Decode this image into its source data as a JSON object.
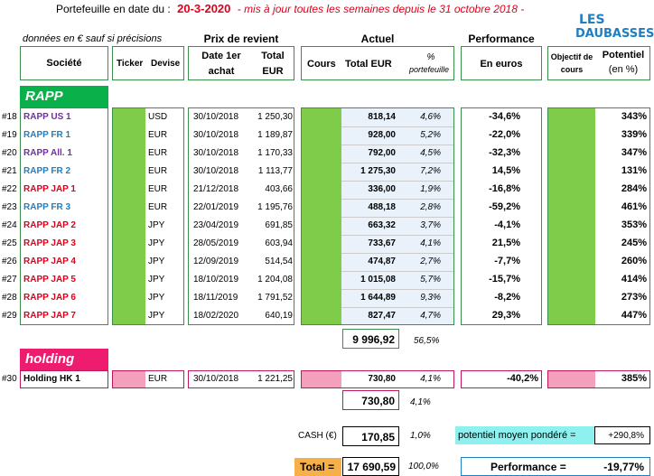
{
  "header": {
    "prefix": "Portefeuille en date du :",
    "date": "20-3-2020",
    "note": "- mis à jour toutes les semaines depuis le 31 octobre 2018 -"
  },
  "logo": {
    "line1": "LES",
    "line2": "DAUBASSES"
  },
  "subtitle": "données en € sauf si précisions",
  "columns": {
    "prix_de_revient": "Prix de revient",
    "actuel": "Actuel",
    "performance": "Performance",
    "societe": "Société",
    "ticker": "Ticker",
    "devise": "Devise",
    "date_achat": "Date 1er achat",
    "total_eur": "Total EUR",
    "cours": "Cours",
    "total_eur2": "Total EUR",
    "pct": "%",
    "pct_sub": "portefeuille",
    "en_euros": "En euros",
    "objectif": "Objectif de cours",
    "potentiel": "Potentiel",
    "potentiel_sub": "(en %)"
  },
  "sections": {
    "rapp": "RAPP",
    "holding": "holding"
  },
  "colors": {
    "rapp_section": "#0ab04a",
    "holding_section": "#ee1c6e",
    "green_fill": "#7fcc4b",
    "pink_fill": "#f4a0bd",
    "fr_blue": "#1f7fc1",
    "jap_red": "#e0001b",
    "us_purple": "#7030a0"
  },
  "rows": [
    {
      "id": "#18",
      "name": "RAPP US 1",
      "color": "#7030a0",
      "devise": "USD",
      "date": "30/10/2018",
      "total": "1 250,30",
      "actuel": "818,14",
      "pct": "4,6%",
      "perf": "-34,6%",
      "potentiel": "343%"
    },
    {
      "id": "#19",
      "name": "RAPP FR 1",
      "color": "#1f7fc1",
      "devise": "EUR",
      "date": "30/10/2018",
      "total": "1 189,87",
      "actuel": "928,00",
      "pct": "5,2%",
      "perf": "-22,0%",
      "potentiel": "339%"
    },
    {
      "id": "#20",
      "name": "RAPP All. 1",
      "color": "#7030a0",
      "devise": "EUR",
      "date": "30/10/2018",
      "total": "1 170,33",
      "actuel": "792,00",
      "pct": "4,5%",
      "perf": "-32,3%",
      "potentiel": "347%"
    },
    {
      "id": "#21",
      "name": "RAPP FR 2",
      "color": "#1f7fc1",
      "devise": "EUR",
      "date": "30/10/2018",
      "total": "1 113,77",
      "actuel": "1 275,30",
      "pct": "7,2%",
      "perf": "14,5%",
      "potentiel": "131%"
    },
    {
      "id": "#22",
      "name": "RAPP JAP 1",
      "color": "#e0001b",
      "devise": "EUR",
      "date": "21/12/2018",
      "total": "403,66",
      "actuel": "336,00",
      "pct": "1,9%",
      "perf": "-16,8%",
      "potentiel": "284%"
    },
    {
      "id": "#23",
      "name": "RAPP FR 3",
      "color": "#1f7fc1",
      "devise": "EUR",
      "date": "22/01/2019",
      "total": "1 195,76",
      "actuel": "488,18",
      "pct": "2,8%",
      "perf": "-59,2%",
      "potentiel": "461%"
    },
    {
      "id": "#24",
      "name": "RAPP JAP 2",
      "color": "#e0001b",
      "devise": "JPY",
      "date": "23/04/2019",
      "total": "691,85",
      "actuel": "663,32",
      "pct": "3,7%",
      "perf": "-4,1%",
      "potentiel": "353%"
    },
    {
      "id": "#25",
      "name": "RAPP JAP 3",
      "color": "#e0001b",
      "devise": "JPY",
      "date": "28/05/2019",
      "total": "603,94",
      "actuel": "733,67",
      "pct": "4,1%",
      "perf": "21,5%",
      "potentiel": "245%"
    },
    {
      "id": "#26",
      "name": "RAPP JAP 4",
      "color": "#e0001b",
      "devise": "JPY",
      "date": "12/09/2019",
      "total": "514,54",
      "actuel": "474,87",
      "pct": "2,7%",
      "perf": "-7,7%",
      "potentiel": "260%"
    },
    {
      "id": "#27",
      "name": "RAPP JAP 5",
      "color": "#e0001b",
      "devise": "JPY",
      "date": "18/10/2019",
      "total": "1 204,08",
      "actuel": "1 015,08",
      "pct": "5,7%",
      "perf": "-15,7%",
      "potentiel": "414%"
    },
    {
      "id": "#28",
      "name": "RAPP JAP 6",
      "color": "#e0001b",
      "devise": "JPY",
      "date": "18/11/2019",
      "total": "1 791,52",
      "actuel": "1 644,89",
      "pct": "9,3%",
      "perf": "-8,2%",
      "potentiel": "273%"
    },
    {
      "id": "#29",
      "name": "RAPP JAP 7",
      "color": "#e0001b",
      "devise": "JPY",
      "date": "18/02/2020",
      "total": "640,19",
      "actuel": "827,47",
      "pct": "4,7%",
      "perf": "29,3%",
      "potentiel": "447%"
    }
  ],
  "rapp_total": {
    "value": "9 996,92",
    "pct": "56,5%"
  },
  "holding_row": {
    "id": "#30",
    "name": "Holding HK 1",
    "devise": "EUR",
    "date": "30/10/2018",
    "total": "1 221,25",
    "actuel": "730,80",
    "pct": "4,1%",
    "perf": "-40,2%",
    "potentiel": "385%"
  },
  "holding_total": {
    "value": "730,80",
    "pct": "4,1%"
  },
  "cash": {
    "label": "CASH (€)",
    "value": "170,85",
    "pct": "1,0%"
  },
  "potentiel_moyen": {
    "label": "potentiel moyen pondéré =",
    "value": "+290,8%"
  },
  "total": {
    "label": "Total =",
    "value": "17 690,59",
    "pct": "100,0%"
  },
  "performance": {
    "label": "Performance =",
    "value": "-19,77%"
  }
}
